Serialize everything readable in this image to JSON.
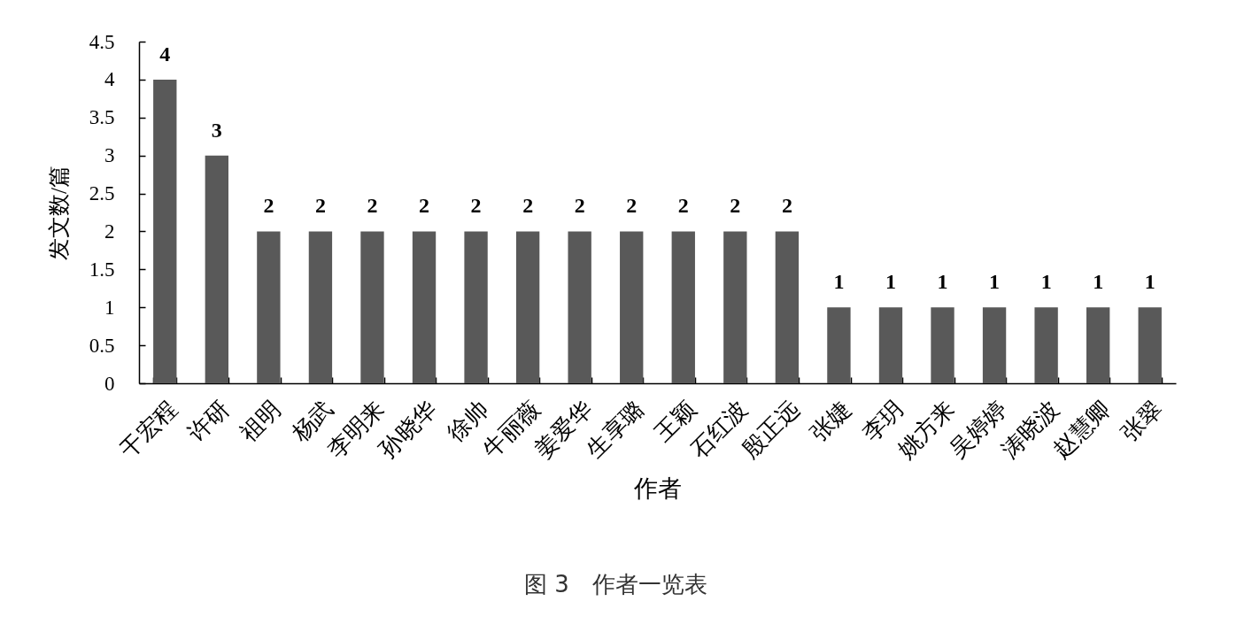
{
  "chart_data": {
    "type": "bar",
    "title": "图 3　作者一览表",
    "xlabel": "作者",
    "ylabel": "发文数/篇",
    "categories": [
      "干宏程",
      "许研",
      "祖明",
      "杨武",
      "李明来",
      "孙晓华",
      "徐帅",
      "牛丽薇",
      "姜爱华",
      "生享璐",
      "王颖",
      "石红波",
      "殷正远",
      "张婕",
      "李玥",
      "姚方来",
      "吴婷婷",
      "涛晓波",
      "赵慧卿",
      "张翠"
    ],
    "values": [
      4,
      3,
      2,
      2,
      2,
      2,
      2,
      2,
      2,
      2,
      2,
      2,
      2,
      1,
      1,
      1,
      1,
      1,
      1,
      1
    ],
    "color": "#595959",
    "ylim": [
      0,
      4.5
    ],
    "yticks": [
      0,
      0.5,
      1,
      1.5,
      2,
      2.5,
      3,
      3.5,
      4,
      4.5
    ],
    "data_labels": true,
    "grid": false
  }
}
